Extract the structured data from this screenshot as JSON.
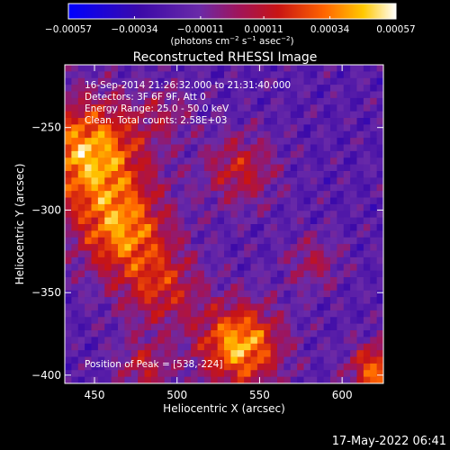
{
  "chart_data": {
    "type": "heatmap",
    "title": "Reconstructed RHESSI Image",
    "xlabel": "Heliocentric X (arcsec)",
    "ylabel": "Heliocentric Y (arcsec)",
    "xlim": [
      432,
      625
    ],
    "ylim": [
      -405,
      -212
    ],
    "x_ticks": [
      450,
      500,
      550,
      600
    ],
    "y_ticks": [
      -250,
      -300,
      -350,
      -400
    ],
    "x_tick_labels": [
      "450",
      "500",
      "550",
      "600"
    ],
    "y_tick_labels": [
      "−250",
      "−300",
      "−350",
      "−400"
    ],
    "colorbar": {
      "min": -0.00057,
      "max": 0.00057,
      "ticks": [
        -0.00057,
        -0.00034,
        -0.00011,
        0.00011,
        0.00034,
        0.00057
      ],
      "tick_labels": [
        "−0.00057",
        "−0.00034",
        "−0.00011",
        "0.00011",
        "0.00034",
        "0.00057"
      ],
      "unit_label": "(photons cm",
      "unit_exp1": "−2",
      "unit_mid": " s",
      "unit_exp2": "−1",
      "unit_mid2": " asec",
      "unit_exp3": "−2",
      "unit_close": ")"
    },
    "annotations": [
      "16-Sep-2014 21:26:32.000 to 21:31:40.000",
      "Detectors: 3F 6F 9F, Att 0",
      "Energy Range: 25.0 - 50.0 keV",
      "Clean.  Total counts: 2.58E+03"
    ],
    "peak_label": "Position of Peak = [538,-224]",
    "peak_position": [
      538,
      -224
    ],
    "grid": false,
    "legend": "none",
    "colors": {
      "colormap": [
        "#0000ff",
        "#3c0aa8",
        "#6a2aa8",
        "#a0145a",
        "#c81414",
        "#ff6400",
        "#ffc800",
        "#ffffff"
      ],
      "background": "#000000"
    }
  },
  "footer": {
    "timestamp": "17-May-2022 06:41"
  }
}
